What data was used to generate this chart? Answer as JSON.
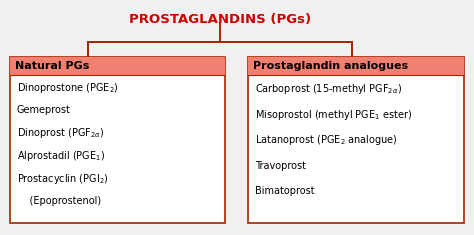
{
  "title": "PROSTAGLANDINS (PGs)",
  "title_color": "#cc0000",
  "bg_color": "#f0f0f0",
  "box_header_bg": "#f08070",
  "box_bg": "#ffffff",
  "box_border_color": "#aa2200",
  "box1_header": "Natural PGs",
  "box2_header": "Prostaglandin analogues",
  "box1_lines": [
    "Dinoprostone (PGE$_2$)",
    "Gemeprost",
    "Dinoprost (PGF$_{2\\alpha}$)",
    "Alprostadil (PGE$_1$)",
    "Prostacyclin (PGI$_2$)",
    "    (Epoprostenol)"
  ],
  "box2_lines": [
    "Carboprost (15-methyl PGF$_{2\\alpha}$)",
    "Misoprostol (methyl PGE$_1$ ester)",
    "Latanoprost (PGE$_2$ analogue)",
    "Travoprost",
    "Bimatoprost"
  ],
  "line_color": "#aa2200",
  "title_fontsize": 9.5,
  "header_fontsize": 8.0,
  "body_fontsize": 7.0
}
